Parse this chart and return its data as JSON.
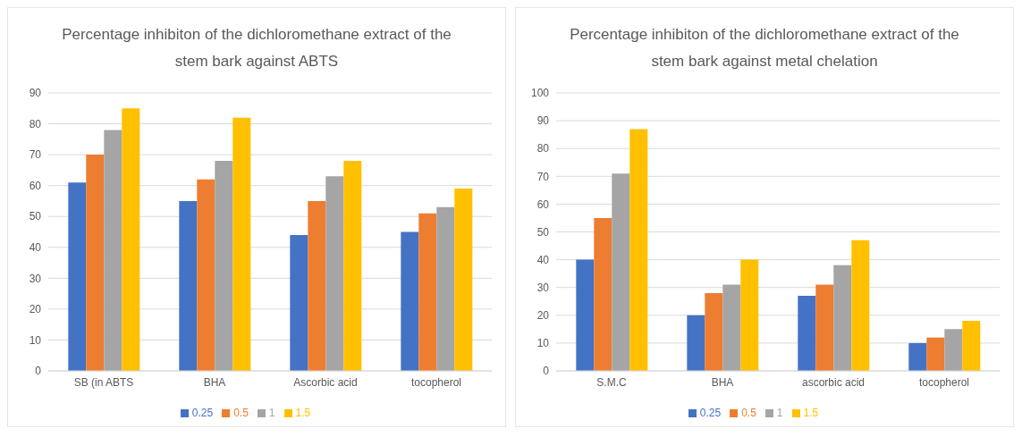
{
  "chart_data": [
    {
      "type": "bar",
      "title": "Percentage inhibiton of the dichloromethane extract of the stem bark against ABTS",
      "categories": [
        "SB (in ABTS",
        "BHA",
        "Ascorbic acid",
        "tocopherol"
      ],
      "series": [
        {
          "name": "0.25",
          "color": "#4472c4",
          "values": [
            61,
            55,
            44,
            45
          ]
        },
        {
          "name": "0.5",
          "color": "#ed7d31",
          "values": [
            70,
            62,
            55,
            51
          ]
        },
        {
          "name": "1",
          "color": "#a5a5a5",
          "values": [
            78,
            68,
            63,
            53
          ]
        },
        {
          "name": "1.5",
          "color": "#ffc000",
          "values": [
            85,
            82,
            68,
            59
          ]
        }
      ],
      "ylim": [
        0,
        90
      ],
      "yticks": [
        0,
        10,
        20,
        30,
        40,
        50,
        60,
        70,
        80,
        90
      ],
      "grid": "y",
      "legend": "bottom"
    },
    {
      "type": "bar",
      "title": "Percentage inhibiton of the dichloromethane extract of the stem bark against metal chelation",
      "categories": [
        "S.M.C",
        "BHA",
        "ascorbic acid",
        "tocopherol"
      ],
      "series": [
        {
          "name": "0.25",
          "color": "#4472c4",
          "values": [
            40,
            20,
            27,
            10
          ]
        },
        {
          "name": "0.5",
          "color": "#ed7d31",
          "values": [
            55,
            28,
            31,
            12
          ]
        },
        {
          "name": "1",
          "color": "#a5a5a5",
          "values": [
            71,
            31,
            38,
            15
          ]
        },
        {
          "name": "1.5",
          "color": "#ffc000",
          "values": [
            87,
            40,
            47,
            18
          ]
        }
      ],
      "ylim": [
        0,
        100
      ],
      "yticks": [
        0,
        10,
        20,
        30,
        40,
        50,
        60,
        70,
        80,
        90,
        100
      ],
      "grid": "y",
      "legend": "bottom"
    }
  ]
}
